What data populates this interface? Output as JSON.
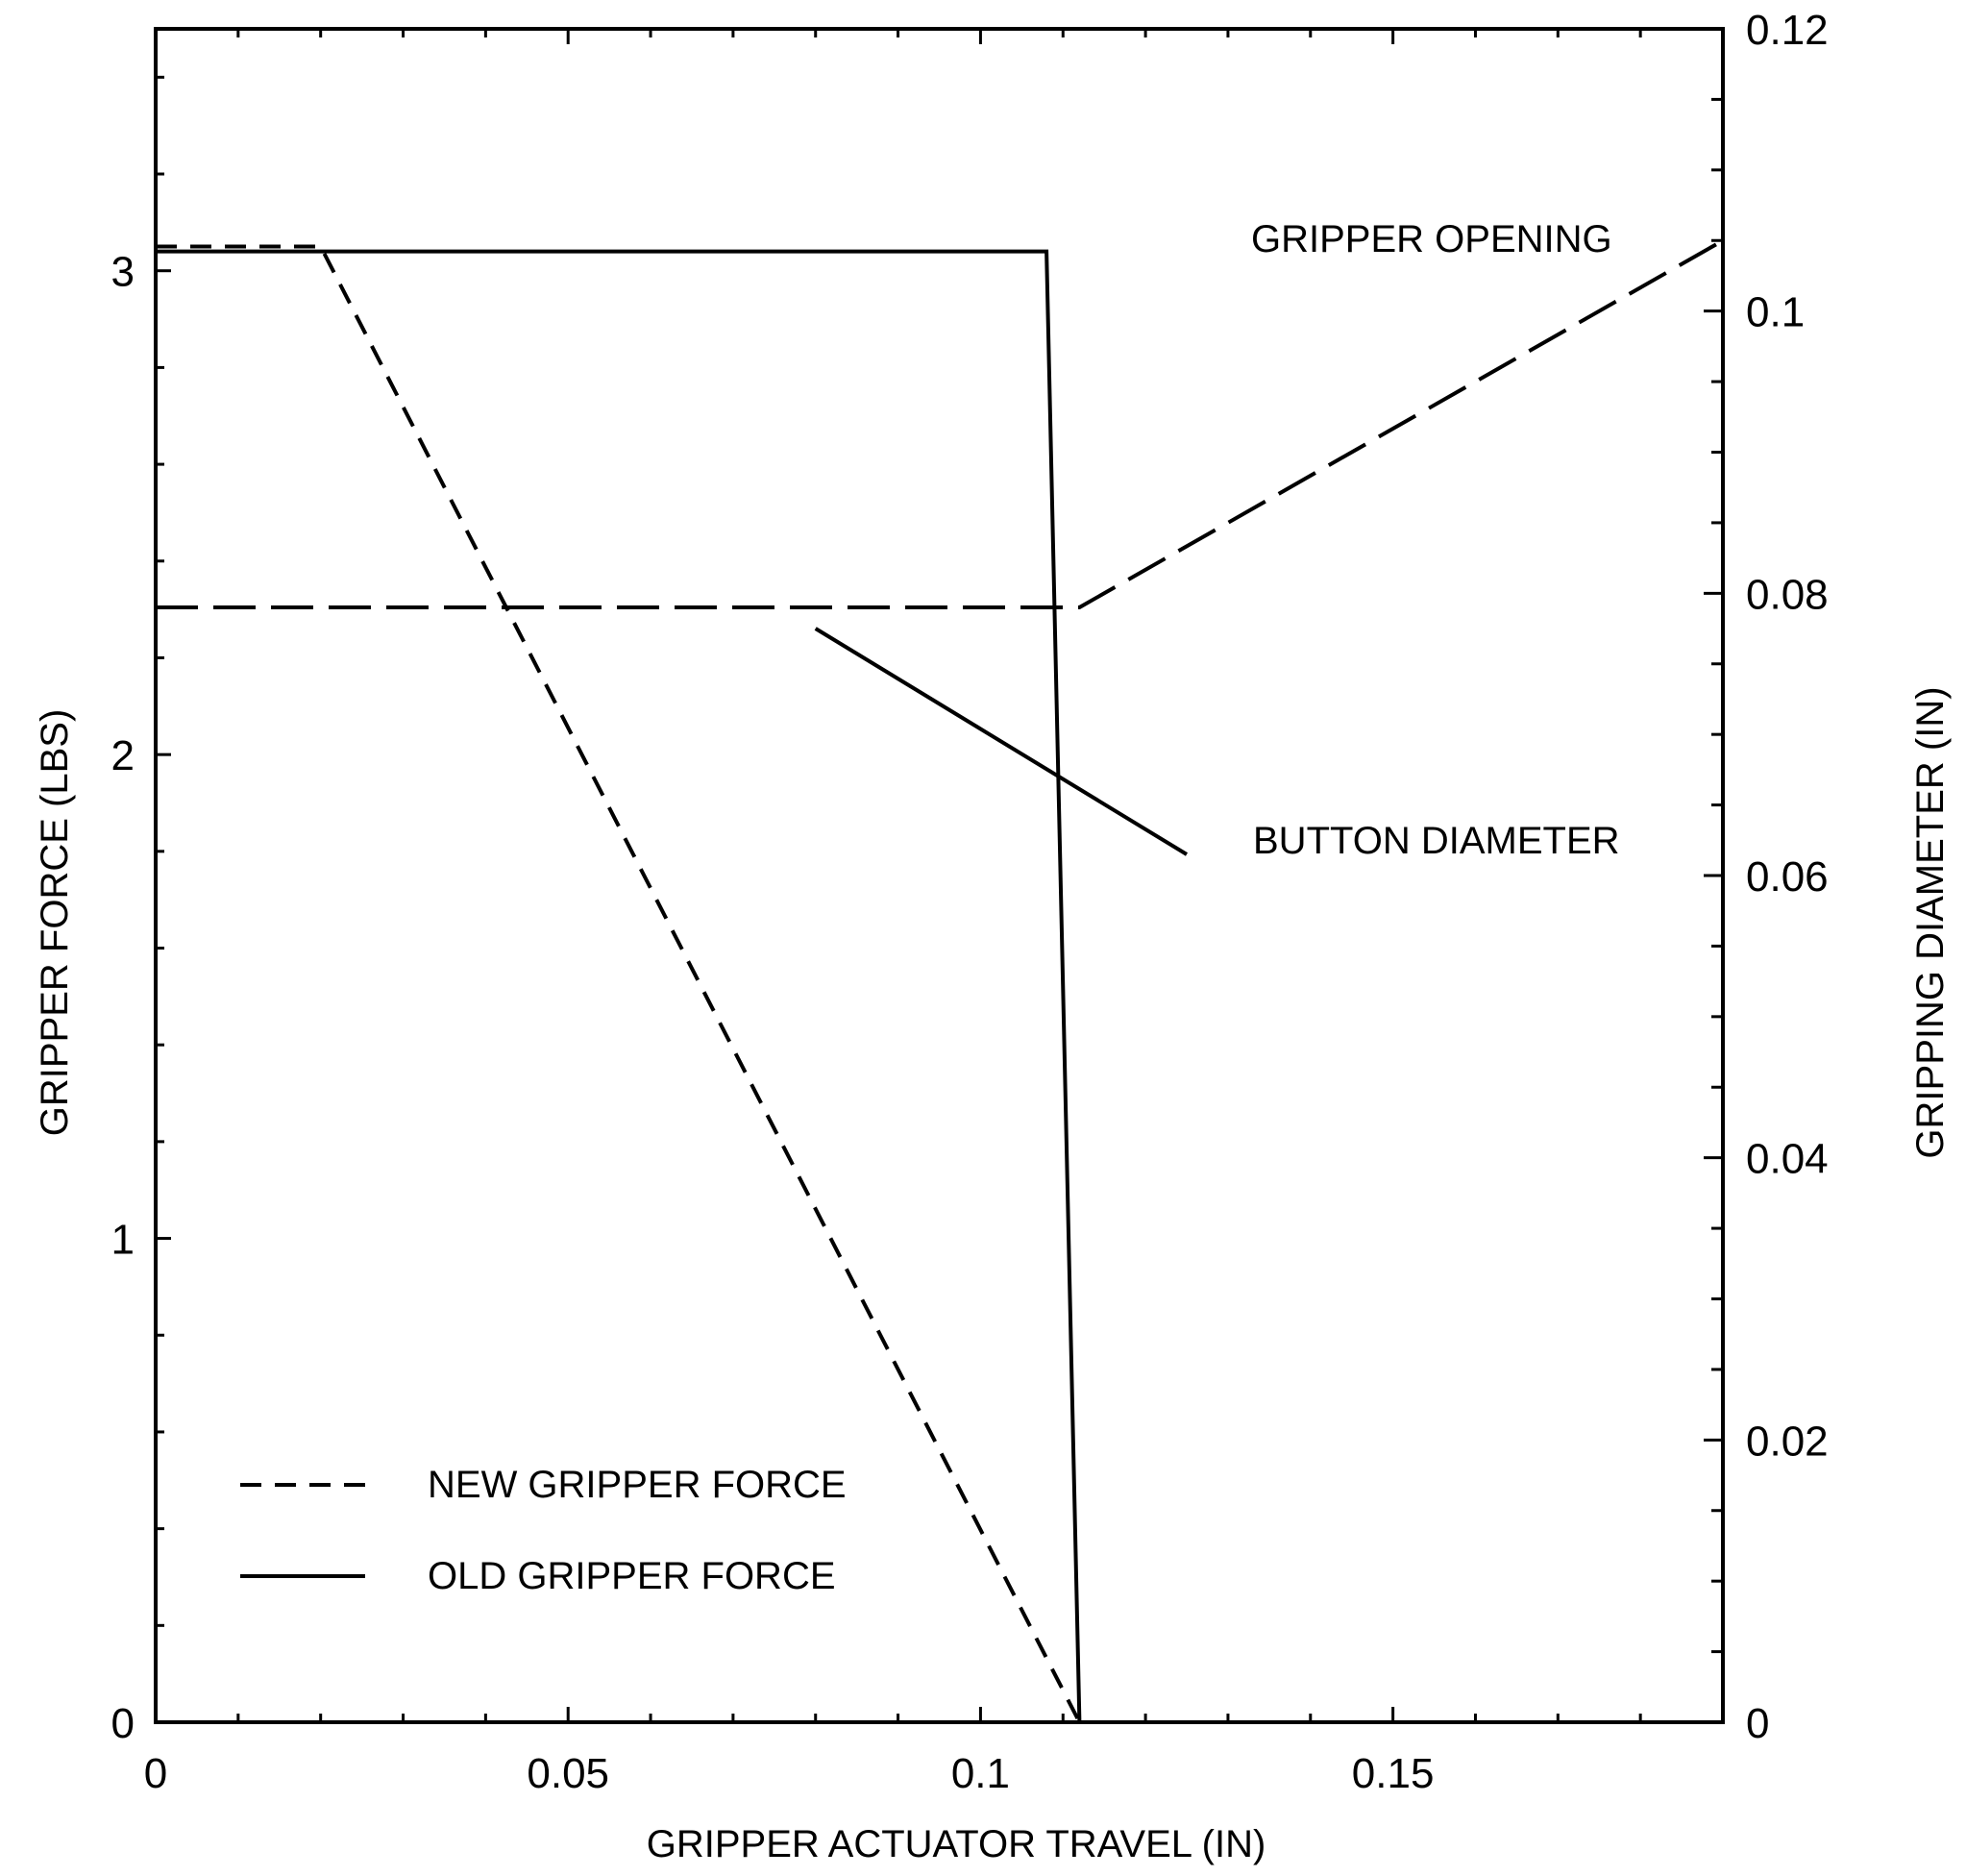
{
  "chart_data": {
    "type": "line",
    "xlabel": "GRIPPER ACTUATOR TRAVEL (IN)",
    "ylabel": "GRIPPER FORCE (LBS)",
    "y2label": "GRIPPING DIAMETER (IN)",
    "xlim": [
      0,
      0.19
    ],
    "ylim": [
      0,
      3.5
    ],
    "y2lim": [
      0,
      0.12
    ],
    "x_ticks": [
      0,
      0.05,
      0.1,
      0.15
    ],
    "x_tick_labels": [
      "0",
      "0.05",
      "0.1",
      "0.15"
    ],
    "y_ticks": [
      0,
      1,
      2,
      3
    ],
    "y_tick_labels": [
      "0",
      "1",
      "2",
      "3"
    ],
    "y2_ticks": [
      0,
      0.02,
      0.04,
      0.06,
      0.08,
      0.1,
      0.12
    ],
    "y2_tick_labels": [
      "0",
      "0.02",
      "0.04",
      "0.06",
      "0.08",
      "0.1",
      "0.12"
    ],
    "grid": false,
    "legend_position": "bottom-left",
    "series": [
      {
        "name": "NEW GRIPPER FORCE",
        "axis": "left",
        "style": "dashed",
        "x": [
          0,
          0.02,
          0.112
        ],
        "y": [
          3.05,
          3.05,
          0
        ]
      },
      {
        "name": "OLD GRIPPER FORCE",
        "axis": "left",
        "style": "solid",
        "x": [
          0,
          0.108,
          0.112,
          0.112
        ],
        "y": [
          3.04,
          3.04,
          0,
          0
        ]
      },
      {
        "name": "GRIPPER OPENING",
        "axis": "right",
        "style": "longdash",
        "x": [
          0,
          0.112,
          0.19
        ],
        "y": [
          0.079,
          0.079,
          0.105
        ]
      },
      {
        "name": "BUTTON DIAMETER",
        "axis": "right",
        "style": "solid",
        "x": [
          0.08,
          0.125
        ],
        "y": [
          0.0775,
          0.0615
        ]
      }
    ],
    "annotations": {
      "gripper_opening": "GRIPPER OPENING",
      "button_diameter": "BUTTON DIAMETER"
    },
    "legend": [
      {
        "label": "NEW GRIPPER FORCE",
        "style": "dashed"
      },
      {
        "label": "OLD GRIPPER FORCE",
        "style": "solid"
      }
    ]
  }
}
